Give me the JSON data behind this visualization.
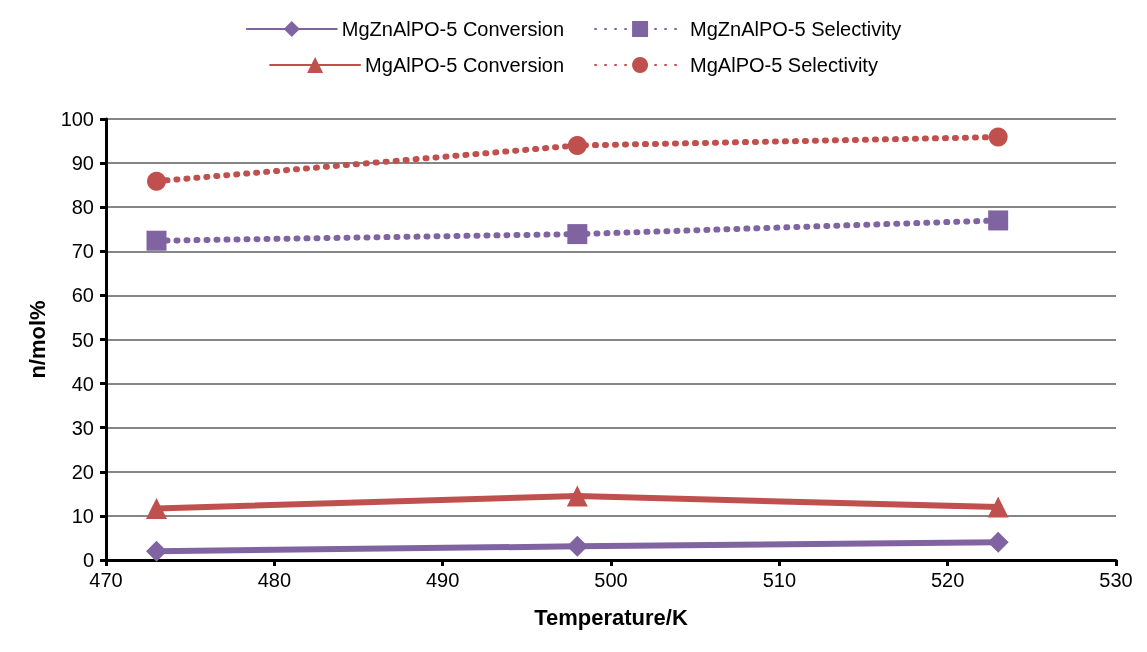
{
  "chart_data": {
    "type": "line",
    "xlabel": "Temperature/K",
    "ylabel": "n/mol%",
    "x": [
      473,
      498,
      523
    ],
    "series": [
      {
        "name": "MgZnAlPO-5 Conversion",
        "color": "#8064a2",
        "marker": "diamond",
        "line_style": "solid",
        "values": [
          2.0,
          3.1,
          4.0
        ]
      },
      {
        "name": "MgZnAlPO-5 Selectivity",
        "color": "#8064a2",
        "marker": "square",
        "line_style": "dotted",
        "values": [
          72.4,
          73.9,
          77.0
        ]
      },
      {
        "name": "MgAlPO-5 Conversion",
        "color": "#c0504d",
        "marker": "triangle",
        "line_style": "solid",
        "values": [
          11.7,
          14.5,
          12.0
        ]
      },
      {
        "name": "MgAlPO-5 Selectivity",
        "color": "#c0504d",
        "marker": "circle",
        "line_style": "dotted",
        "values": [
          85.9,
          94.0,
          95.9
        ]
      }
    ],
    "xlim": [
      470,
      530
    ],
    "xticks": [
      470,
      480,
      490,
      500,
      510,
      520,
      530
    ],
    "ylim": [
      0,
      100
    ],
    "yticks": [
      0,
      10,
      20,
      30,
      40,
      50,
      60,
      70,
      80,
      90,
      100
    ],
    "grid": "y",
    "legend": "top"
  }
}
